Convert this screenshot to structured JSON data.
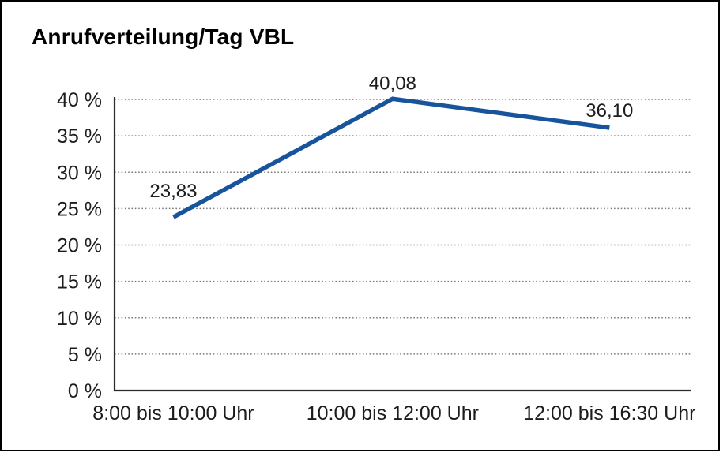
{
  "title": "Anrufverteilung/Tag VBL",
  "colors": {
    "background": "#ffffff",
    "frame_border": "#000000",
    "line": "#18549b",
    "grid": "#7b7b7b",
    "axis": "#2b2b2b",
    "text": "#1c1c1c",
    "title_text": "#000000"
  },
  "chart_data": {
    "type": "line",
    "title": "Anrufverteilung/Tag VBL",
    "categories": [
      "8:00 bis 10:00 Uhr",
      "10:00 bis 12:00 Uhr",
      "12:00 bis 16:30 Uhr"
    ],
    "values": [
      23.83,
      40.08,
      36.1
    ],
    "data_labels": [
      "23,83",
      "40,08",
      "36,10"
    ],
    "series_name": "Anrufverteilung",
    "xlabel": "",
    "ylabel": "",
    "ylim": [
      0,
      40
    ],
    "ytick_step": 5,
    "ytick_labels": [
      "0 %",
      "5 %",
      "10 %",
      "15 %",
      "20 %",
      "25 %",
      "30 %",
      "35 %",
      "40 %"
    ],
    "grid": "horizontal dotted",
    "legend": "none"
  }
}
